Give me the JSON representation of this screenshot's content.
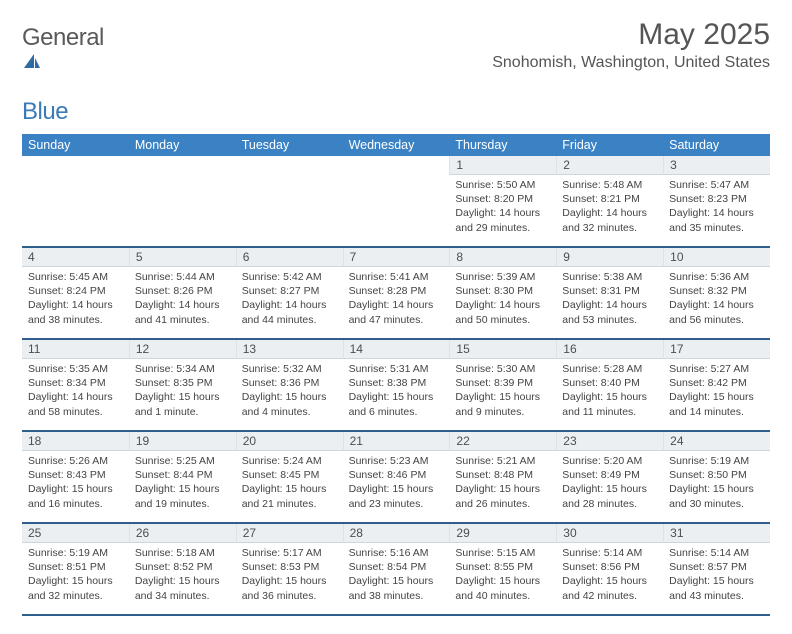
{
  "logo": {
    "text1": "General",
    "text2": "Blue"
  },
  "title": "May 2025",
  "location": "Snohomish, Washington, United States",
  "day_headers": [
    "Sunday",
    "Monday",
    "Tuesday",
    "Wednesday",
    "Thursday",
    "Friday",
    "Saturday"
  ],
  "colors": {
    "header_bg": "#3b82c4",
    "header_text": "#ffffff",
    "daynum_bg": "#eceff1",
    "week_border": "#2f5f8a",
    "logo_blue": "#3a7ab8"
  },
  "weeks": [
    [
      {
        "n": "",
        "s": "",
        "e": "",
        "d": "",
        "empty": true
      },
      {
        "n": "",
        "s": "",
        "e": "",
        "d": "",
        "empty": true
      },
      {
        "n": "",
        "s": "",
        "e": "",
        "d": "",
        "empty": true
      },
      {
        "n": "",
        "s": "",
        "e": "",
        "d": "",
        "empty": true
      },
      {
        "n": "1",
        "s": "Sunrise: 5:50 AM",
        "e": "Sunset: 8:20 PM",
        "d": "Daylight: 14 hours and 29 minutes."
      },
      {
        "n": "2",
        "s": "Sunrise: 5:48 AM",
        "e": "Sunset: 8:21 PM",
        "d": "Daylight: 14 hours and 32 minutes."
      },
      {
        "n": "3",
        "s": "Sunrise: 5:47 AM",
        "e": "Sunset: 8:23 PM",
        "d": "Daylight: 14 hours and 35 minutes."
      }
    ],
    [
      {
        "n": "4",
        "s": "Sunrise: 5:45 AM",
        "e": "Sunset: 8:24 PM",
        "d": "Daylight: 14 hours and 38 minutes."
      },
      {
        "n": "5",
        "s": "Sunrise: 5:44 AM",
        "e": "Sunset: 8:26 PM",
        "d": "Daylight: 14 hours and 41 minutes."
      },
      {
        "n": "6",
        "s": "Sunrise: 5:42 AM",
        "e": "Sunset: 8:27 PM",
        "d": "Daylight: 14 hours and 44 minutes."
      },
      {
        "n": "7",
        "s": "Sunrise: 5:41 AM",
        "e": "Sunset: 8:28 PM",
        "d": "Daylight: 14 hours and 47 minutes."
      },
      {
        "n": "8",
        "s": "Sunrise: 5:39 AM",
        "e": "Sunset: 8:30 PM",
        "d": "Daylight: 14 hours and 50 minutes."
      },
      {
        "n": "9",
        "s": "Sunrise: 5:38 AM",
        "e": "Sunset: 8:31 PM",
        "d": "Daylight: 14 hours and 53 minutes."
      },
      {
        "n": "10",
        "s": "Sunrise: 5:36 AM",
        "e": "Sunset: 8:32 PM",
        "d": "Daylight: 14 hours and 56 minutes."
      }
    ],
    [
      {
        "n": "11",
        "s": "Sunrise: 5:35 AM",
        "e": "Sunset: 8:34 PM",
        "d": "Daylight: 14 hours and 58 minutes."
      },
      {
        "n": "12",
        "s": "Sunrise: 5:34 AM",
        "e": "Sunset: 8:35 PM",
        "d": "Daylight: 15 hours and 1 minute."
      },
      {
        "n": "13",
        "s": "Sunrise: 5:32 AM",
        "e": "Sunset: 8:36 PM",
        "d": "Daylight: 15 hours and 4 minutes."
      },
      {
        "n": "14",
        "s": "Sunrise: 5:31 AM",
        "e": "Sunset: 8:38 PM",
        "d": "Daylight: 15 hours and 6 minutes."
      },
      {
        "n": "15",
        "s": "Sunrise: 5:30 AM",
        "e": "Sunset: 8:39 PM",
        "d": "Daylight: 15 hours and 9 minutes."
      },
      {
        "n": "16",
        "s": "Sunrise: 5:28 AM",
        "e": "Sunset: 8:40 PM",
        "d": "Daylight: 15 hours and 11 minutes."
      },
      {
        "n": "17",
        "s": "Sunrise: 5:27 AM",
        "e": "Sunset: 8:42 PM",
        "d": "Daylight: 15 hours and 14 minutes."
      }
    ],
    [
      {
        "n": "18",
        "s": "Sunrise: 5:26 AM",
        "e": "Sunset: 8:43 PM",
        "d": "Daylight: 15 hours and 16 minutes."
      },
      {
        "n": "19",
        "s": "Sunrise: 5:25 AM",
        "e": "Sunset: 8:44 PM",
        "d": "Daylight: 15 hours and 19 minutes."
      },
      {
        "n": "20",
        "s": "Sunrise: 5:24 AM",
        "e": "Sunset: 8:45 PM",
        "d": "Daylight: 15 hours and 21 minutes."
      },
      {
        "n": "21",
        "s": "Sunrise: 5:23 AM",
        "e": "Sunset: 8:46 PM",
        "d": "Daylight: 15 hours and 23 minutes."
      },
      {
        "n": "22",
        "s": "Sunrise: 5:21 AM",
        "e": "Sunset: 8:48 PM",
        "d": "Daylight: 15 hours and 26 minutes."
      },
      {
        "n": "23",
        "s": "Sunrise: 5:20 AM",
        "e": "Sunset: 8:49 PM",
        "d": "Daylight: 15 hours and 28 minutes."
      },
      {
        "n": "24",
        "s": "Sunrise: 5:19 AM",
        "e": "Sunset: 8:50 PM",
        "d": "Daylight: 15 hours and 30 minutes."
      }
    ],
    [
      {
        "n": "25",
        "s": "Sunrise: 5:19 AM",
        "e": "Sunset: 8:51 PM",
        "d": "Daylight: 15 hours and 32 minutes."
      },
      {
        "n": "26",
        "s": "Sunrise: 5:18 AM",
        "e": "Sunset: 8:52 PM",
        "d": "Daylight: 15 hours and 34 minutes."
      },
      {
        "n": "27",
        "s": "Sunrise: 5:17 AM",
        "e": "Sunset: 8:53 PM",
        "d": "Daylight: 15 hours and 36 minutes."
      },
      {
        "n": "28",
        "s": "Sunrise: 5:16 AM",
        "e": "Sunset: 8:54 PM",
        "d": "Daylight: 15 hours and 38 minutes."
      },
      {
        "n": "29",
        "s": "Sunrise: 5:15 AM",
        "e": "Sunset: 8:55 PM",
        "d": "Daylight: 15 hours and 40 minutes."
      },
      {
        "n": "30",
        "s": "Sunrise: 5:14 AM",
        "e": "Sunset: 8:56 PM",
        "d": "Daylight: 15 hours and 42 minutes."
      },
      {
        "n": "31",
        "s": "Sunrise: 5:14 AM",
        "e": "Sunset: 8:57 PM",
        "d": "Daylight: 15 hours and 43 minutes."
      }
    ]
  ]
}
